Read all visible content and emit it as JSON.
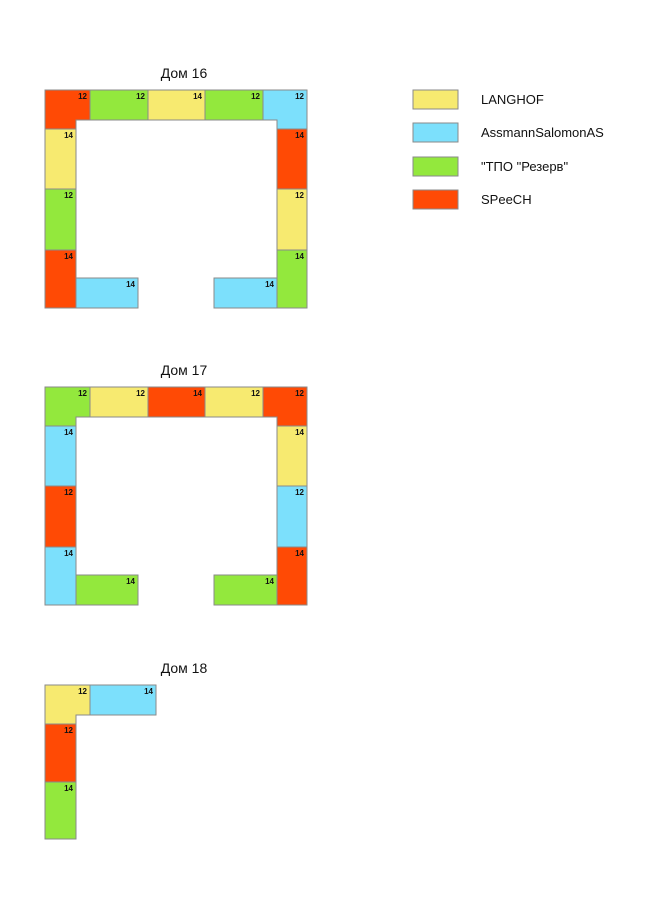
{
  "legend": [
    {
      "key": "langhof",
      "label": "LANGHOF",
      "color": "#f7ea70"
    },
    {
      "key": "assmann",
      "label": "AssmannSalomonAS",
      "color": "#7ce0fc"
    },
    {
      "key": "tpo",
      "label": "\"ТПО \"Резерв\"",
      "color": "#93e83d"
    },
    {
      "key": "speech",
      "label": "SPeeCH",
      "color": "#ff4a05"
    }
  ],
  "buildings": [
    {
      "title": "Дом 16",
      "units": [
        {
          "company": "speech",
          "number": "12"
        },
        {
          "company": "tpo",
          "number": "12"
        },
        {
          "company": "langhof",
          "number": "14"
        },
        {
          "company": "tpo",
          "number": "12"
        },
        {
          "company": "assmann",
          "number": "12"
        },
        {
          "company": "langhof",
          "number": "14"
        },
        {
          "company": "tpo",
          "number": "12"
        },
        {
          "company": "speech",
          "number": "14"
        },
        {
          "company": "assmann",
          "number": "14"
        },
        {
          "company": "assmann",
          "number": "14"
        },
        {
          "company": "speech",
          "number": "14"
        },
        {
          "company": "langhof",
          "number": "12"
        },
        {
          "company": "tpo",
          "number": "14"
        }
      ]
    },
    {
      "title": "Дом 17",
      "units": [
        {
          "company": "tpo",
          "number": "12"
        },
        {
          "company": "langhof",
          "number": "12"
        },
        {
          "company": "speech",
          "number": "14"
        },
        {
          "company": "langhof",
          "number": "12"
        },
        {
          "company": "speech",
          "number": "12"
        },
        {
          "company": "assmann",
          "number": "14"
        },
        {
          "company": "speech",
          "number": "12"
        },
        {
          "company": "assmann",
          "number": "14"
        },
        {
          "company": "tpo",
          "number": "14"
        },
        {
          "company": "tpo",
          "number": "14"
        },
        {
          "company": "langhof",
          "number": "14"
        },
        {
          "company": "assmann",
          "number": "12"
        },
        {
          "company": "speech",
          "number": "14"
        }
      ]
    },
    {
      "title": "Дом 18",
      "units": [
        {
          "company": "langhof",
          "number": "12"
        },
        {
          "company": "assmann",
          "number": "14"
        },
        {
          "company": "speech",
          "number": "12"
        },
        {
          "company": "tpo",
          "number": "14"
        }
      ]
    }
  ]
}
